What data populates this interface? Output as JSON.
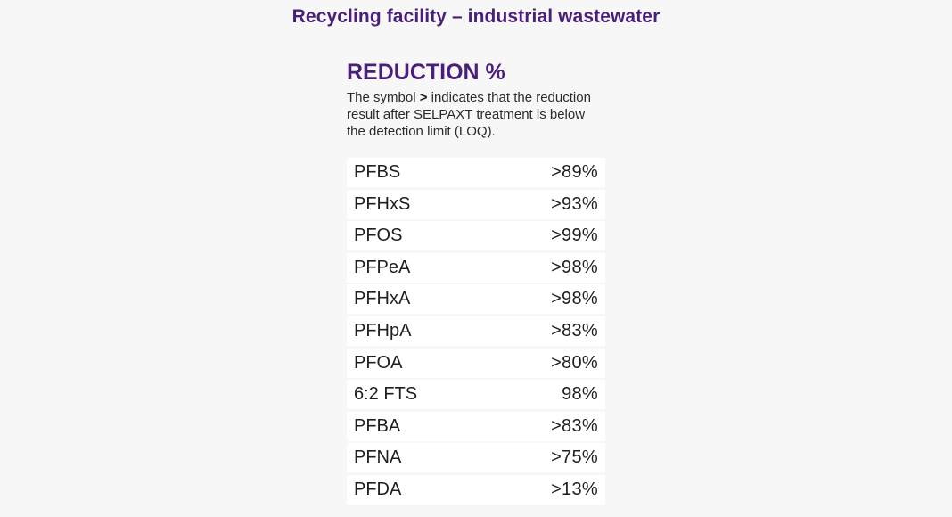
{
  "page": {
    "heading": "Recycling facility – industrial wastewater"
  },
  "panel": {
    "title": "REDUCTION %",
    "desc_prefix": "The symbol ",
    "desc_symbol": ">",
    "desc_line1_rest": " indicates that the reduction",
    "desc_line2": "result after SELPAXT treatment is below",
    "desc_line3": "the detection limit (LOQ)."
  },
  "rows": [
    {
      "name": "PFBS",
      "value": ">89%"
    },
    {
      "name": "PFHxS",
      "value": ">93%"
    },
    {
      "name": "PFOS",
      "value": ">99%"
    },
    {
      "name": "PFPeA",
      "value": ">98%"
    },
    {
      "name": "PFHxA",
      "value": ">98%"
    },
    {
      "name": "PFHpA",
      "value": ">83%"
    },
    {
      "name": "PFOA",
      "value": ">80%"
    },
    {
      "name": "6:2 FTS",
      "value": "98%"
    },
    {
      "name": "PFBA",
      "value": ">83%"
    },
    {
      "name": "PFNA",
      "value": ">75%"
    },
    {
      "name": "PFDA",
      "value": ">13%"
    }
  ]
}
